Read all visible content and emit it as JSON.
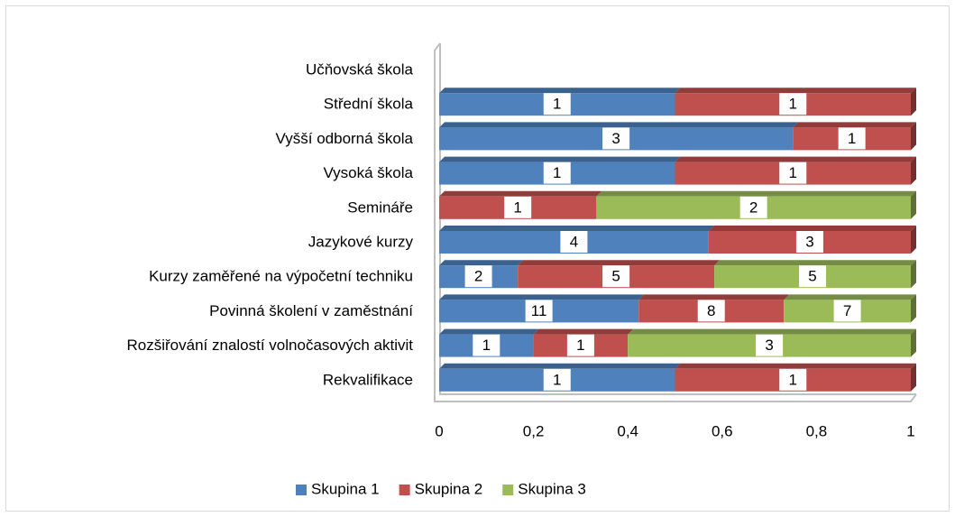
{
  "chart_data": {
    "type": "bar",
    "orientation": "horizontal",
    "stacking": "percent",
    "categories": [
      "Učňovská škola",
      "Střední škola",
      "Vyšší odborná škola",
      "Vysoká škola",
      "Semináře",
      "Jazykové kurzy",
      "Kurzy zaměřené na výpočetní techniku",
      "Povinná školení v zaměstnání",
      "Rozšiřování znalostí volnočasových aktivit",
      "Rekvalifikace"
    ],
    "series": [
      {
        "name": "Skupina 1",
        "color": "#4f81bd",
        "values": [
          null,
          1,
          3,
          1,
          null,
          4,
          2,
          11,
          1,
          1
        ]
      },
      {
        "name": "Skupina 2",
        "color": "#c0504d",
        "values": [
          null,
          1,
          1,
          1,
          1,
          3,
          5,
          8,
          1,
          1
        ]
      },
      {
        "name": "Skupina 3",
        "color": "#9bbb59",
        "values": [
          null,
          null,
          null,
          null,
          2,
          null,
          5,
          7,
          3,
          null
        ]
      }
    ],
    "xlim": [
      0,
      1
    ],
    "xticks": [
      0,
      {
        "value": 0.2,
        "label": "0,2"
      },
      {
        "value": 0.4,
        "label": "0,4"
      },
      {
        "value": 0.6,
        "label": "0,6"
      },
      {
        "value": 0.8,
        "label": "0,8"
      },
      1
    ],
    "legend": "bottom"
  }
}
